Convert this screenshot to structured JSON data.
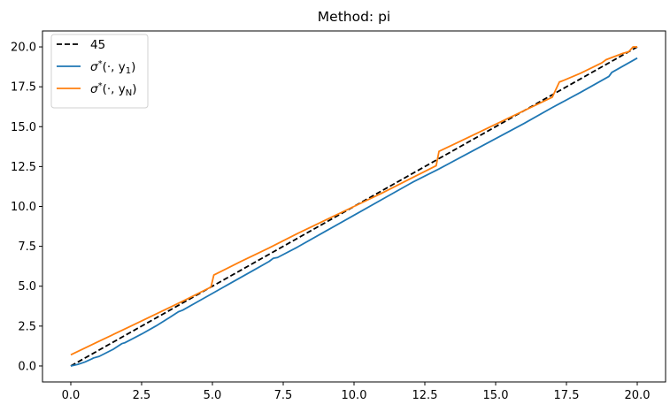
{
  "chart_data": {
    "type": "line",
    "title": "Method: pi",
    "xlabel": "",
    "ylabel": "",
    "xlim": [
      -1.0,
      21.0
    ],
    "ylim": [
      -1.0,
      21.0
    ],
    "xticks": [
      "0.0",
      "2.5",
      "5.0",
      "7.5",
      "10.0",
      "12.5",
      "15.0",
      "17.5",
      "20.0"
    ],
    "yticks": [
      "0.0",
      "2.5",
      "5.0",
      "7.5",
      "10.0",
      "12.5",
      "15.0",
      "17.5",
      "20.0"
    ],
    "grid": false,
    "legend_position": "upper-left",
    "series": [
      {
        "name": "45",
        "color": "#000000",
        "style": "dashed",
        "x": [
          0.0,
          20.0
        ],
        "y": [
          0.0,
          20.0
        ]
      },
      {
        "name": "σ*(·, y1)",
        "name_math": {
          "base": "σ",
          "sup": "*",
          "args": "(·, y",
          "sub": "1",
          "close": ")"
        },
        "color": "#1f77b4",
        "style": "solid",
        "x": [
          0.0,
          0.25,
          0.5,
          0.75,
          0.8,
          1.0,
          1.5,
          1.8,
          1.9,
          2.5,
          3.0,
          3.5,
          3.8,
          3.95,
          4.5,
          5.0,
          5.5,
          6.0,
          6.5,
          7.0,
          7.15,
          7.3,
          8.0,
          9.0,
          10.0,
          11.0,
          11.95,
          12.1,
          13.0,
          14.0,
          15.0,
          16.0,
          17.0,
          18.0,
          19.0,
          19.1,
          19.3,
          20.0
        ],
        "y": [
          0.0,
          0.1,
          0.25,
          0.45,
          0.5,
          0.6,
          1.05,
          1.4,
          1.45,
          2.0,
          2.5,
          3.05,
          3.4,
          3.5,
          4.05,
          4.55,
          5.05,
          5.55,
          6.05,
          6.55,
          6.75,
          6.8,
          7.45,
          8.45,
          9.45,
          10.45,
          11.4,
          11.55,
          12.35,
          13.3,
          14.25,
          15.2,
          16.2,
          17.15,
          18.15,
          18.4,
          18.6,
          19.3
        ]
      },
      {
        "name": "σ*(·, yN)",
        "name_math": {
          "base": "σ",
          "sup": "*",
          "args": "(·, y",
          "sub": "N",
          "close": ")"
        },
        "color": "#ff7f0e",
        "style": "solid",
        "x": [
          0.0,
          1.0,
          2.0,
          3.0,
          4.0,
          4.95,
          5.05,
          6.0,
          7.0,
          8.0,
          9.0,
          10.0,
          11.0,
          12.0,
          12.9,
          13.0,
          14.0,
          15.0,
          16.0,
          17.0,
          17.25,
          17.4,
          18.0,
          18.75,
          18.9,
          19.5,
          19.7,
          19.85,
          20.0
        ],
        "y": [
          0.7,
          1.55,
          2.4,
          3.25,
          4.1,
          4.95,
          5.7,
          6.55,
          7.4,
          8.3,
          9.15,
          10.0,
          10.85,
          11.75,
          12.55,
          13.45,
          14.3,
          15.15,
          16.0,
          16.85,
          17.8,
          17.9,
          18.35,
          19.0,
          19.2,
          19.6,
          19.7,
          20.0,
          20.0
        ]
      }
    ]
  }
}
